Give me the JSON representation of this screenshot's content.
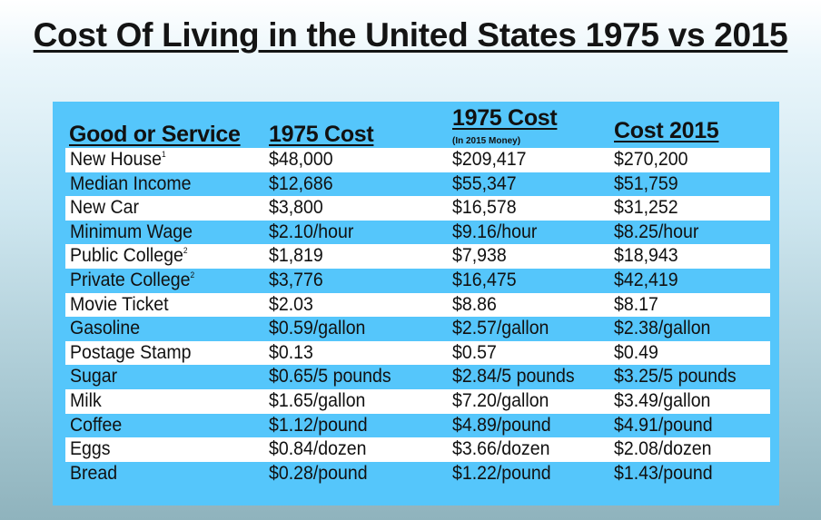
{
  "title": "Cost Of Living in the United States 1975 vs 2015",
  "colors": {
    "panel": "#55c6fb",
    "row_alt": "#ffffff"
  },
  "headers": {
    "good": "Good or Service",
    "cost1975": "1975 Cost",
    "cost1975_2015": "1975 Cost",
    "cost1975_2015_note": "(In 2015 Money)",
    "cost2015": "Cost 2015"
  },
  "rows": [
    {
      "good": "New House",
      "sup": "1",
      "c1975": "$48,000",
      "c1975adj": "$209,417",
      "c2015": "$270,200"
    },
    {
      "good": "Median Income",
      "sup": "",
      "c1975": "$12,686",
      "c1975adj": "$55,347",
      "c2015": "$51,759"
    },
    {
      "good": "New Car",
      "sup": "",
      "c1975": "$3,800",
      "c1975adj": "$16,578",
      "c2015": "$31,252"
    },
    {
      "good": "Minimum Wage",
      "sup": "",
      "c1975": "$2.10/hour",
      "c1975adj": "$9.16/hour",
      "c2015": "$8.25/hour"
    },
    {
      "good": "Public College",
      "sup": "2",
      "c1975": "$1,819",
      "c1975adj": "$7,938",
      "c2015": "$18,943"
    },
    {
      "good": "Private College",
      "sup": "2",
      "c1975": "$3,776",
      "c1975adj": "$16,475",
      "c2015": "$42,419"
    },
    {
      "good": "Movie Ticket",
      "sup": "",
      "c1975": "$2.03",
      "c1975adj": "$8.86",
      "c2015": "$8.17"
    },
    {
      "good": "Gasoline",
      "sup": "",
      "c1975": "$0.59/gallon",
      "c1975adj": "$2.57/gallon",
      "c2015": "$2.38/gallon"
    },
    {
      "good": "Postage Stamp",
      "sup": "",
      "c1975": "$0.13",
      "c1975adj": "$0.57",
      "c2015": "$0.49"
    },
    {
      "good": "Sugar",
      "sup": "",
      "c1975": "$0.65/5 pounds",
      "c1975adj": "$2.84/5 pounds",
      "c2015": "$3.25/5 pounds"
    },
    {
      "good": "Milk",
      "sup": "",
      "c1975": "$1.65/gallon",
      "c1975adj": "$7.20/gallon",
      "c2015": "$3.49/gallon"
    },
    {
      "good": "Coffee",
      "sup": "",
      "c1975": "$1.12/pound",
      "c1975adj": "$4.89/pound",
      "c2015": "$4.91/pound"
    },
    {
      "good": "Eggs",
      "sup": "",
      "c1975": "$0.84/dozen",
      "c1975adj": "$3.66/dozen",
      "c2015": "$2.08/dozen"
    },
    {
      "good": "Bread",
      "sup": "",
      "c1975": "$0.28/pound",
      "c1975adj": "$1.22/pound",
      "c2015": "$1.43/pound"
    }
  ]
}
